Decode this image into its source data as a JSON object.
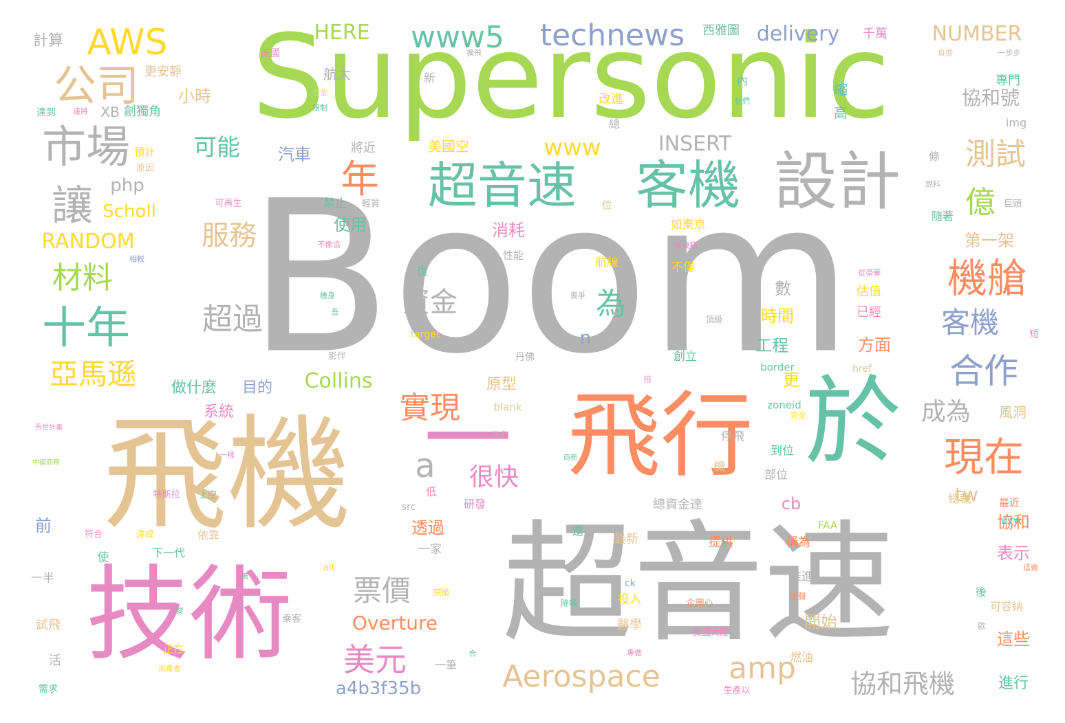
{
  "palette": {
    "grey": "#b3b3b3",
    "green": "#a6d854",
    "tan": "#e5c494",
    "orange": "#fc8d62",
    "teal": "#66c2a5",
    "pink": "#e78ac3",
    "blue": "#8da0cb",
    "yellow": "#ffd92f"
  },
  "words": [
    {
      "text": "Boom",
      "color": "grey"
    },
    {
      "text": "Supersonic",
      "color": "green"
    },
    {
      "text": "超音速",
      "color": "grey"
    },
    {
      "text": "飛機",
      "color": "tan"
    },
    {
      "text": "技術",
      "color": "pink"
    },
    {
      "text": "飛行",
      "color": "orange"
    },
    {
      "text": "於",
      "color": "teal"
    },
    {
      "text": "一",
      "color": "pink"
    },
    {
      "text": "設計",
      "color": "grey"
    },
    {
      "text": "客機",
      "color": "teal"
    },
    {
      "text": "超音速",
      "color": "teal"
    },
    {
      "text": "市場",
      "color": "grey"
    },
    {
      "text": "公司",
      "color": "tan"
    },
    {
      "text": "AWS",
      "color": "yellow"
    },
    {
      "text": "technews",
      "color": "blue"
    },
    {
      "text": "www5",
      "color": "teal"
    },
    {
      "text": "十年",
      "color": "teal"
    },
    {
      "text": "讓",
      "color": "grey"
    },
    {
      "text": "年",
      "color": "orange"
    },
    {
      "text": "機艙",
      "color": "orange"
    },
    {
      "text": "現在",
      "color": "orange"
    },
    {
      "text": "亞馬遜",
      "color": "yellow"
    },
    {
      "text": "材料",
      "color": "green"
    },
    {
      "text": "測試",
      "color": "tan"
    },
    {
      "text": "億",
      "color": "green"
    },
    {
      "text": "服務",
      "color": "tan"
    },
    {
      "text": "為",
      "color": "teal"
    },
    {
      "text": "超過",
      "color": "grey"
    },
    {
      "text": "資金",
      "color": "grey"
    },
    {
      "text": "實現",
      "color": "orange"
    },
    {
      "text": "合作",
      "color": "blue"
    },
    {
      "text": "客機",
      "color": "blue"
    },
    {
      "text": "美元",
      "color": "pink"
    },
    {
      "text": "票價",
      "color": "grey"
    },
    {
      "text": "Aerospace",
      "color": "tan"
    },
    {
      "text": "amp",
      "color": "tan"
    },
    {
      "text": "協和飛機",
      "color": "grey"
    },
    {
      "text": "a",
      "color": "grey"
    },
    {
      "text": "www",
      "color": "yellow"
    },
    {
      "text": "可能",
      "color": "teal"
    },
    {
      "text": "成為",
      "color": "grey"
    },
    {
      "text": "很快",
      "color": "pink"
    },
    {
      "text": "HERE",
      "color": "green"
    },
    {
      "text": "delivery",
      "color": "blue"
    },
    {
      "text": "NUMBER",
      "color": "tan"
    },
    {
      "text": "INSERT",
      "color": "grey"
    },
    {
      "text": "RANDOM",
      "color": "yellow"
    },
    {
      "text": "Collins",
      "color": "green"
    },
    {
      "text": "Overture",
      "color": "orange"
    },
    {
      "text": "tw",
      "color": "tan"
    },
    {
      "text": "a4b3f35b",
      "color": "blue"
    },
    {
      "text": "協和號",
      "color": "grey"
    },
    {
      "text": "第一架",
      "color": "tan"
    },
    {
      "text": "小時",
      "color": "tan"
    },
    {
      "text": "汽車",
      "color": "blue"
    },
    {
      "text": "php",
      "color": "grey"
    },
    {
      "text": "Scholl",
      "color": "yellow"
    },
    {
      "text": "使用",
      "color": "teal"
    },
    {
      "text": "消耗",
      "color": "pink"
    },
    {
      "text": "時間",
      "color": "yellow"
    },
    {
      "text": "工程",
      "color": "teal"
    },
    {
      "text": "方面",
      "color": "orange"
    },
    {
      "text": "表示",
      "color": "pink"
    },
    {
      "text": "協和",
      "color": "orange"
    },
    {
      "text": "開始",
      "color": "tan"
    },
    {
      "text": "這些",
      "color": "orange"
    },
    {
      "text": "進行",
      "color": "teal"
    },
    {
      "text": "透過",
      "color": "orange"
    },
    {
      "text": "系統",
      "color": "pink"
    },
    {
      "text": "做什麼",
      "color": "teal"
    },
    {
      "text": "目的",
      "color": "blue"
    },
    {
      "text": "前",
      "color": "blue"
    },
    {
      "text": "cb",
      "color": "pink"
    },
    {
      "text": "n",
      "color": "blue"
    },
    {
      "text": "原型",
      "color": "tan"
    },
    {
      "text": "數",
      "color": "grey"
    },
    {
      "text": "更",
      "color": "yellow"
    },
    {
      "text": "計算",
      "color": "grey"
    },
    {
      "text": "美國空",
      "color": "yellow"
    },
    {
      "text": "航太",
      "color": "grey"
    },
    {
      "text": "西雅圖",
      "color": "teal"
    },
    {
      "text": "千萬",
      "color": "pink"
    },
    {
      "text": "專門",
      "color": "teal"
    },
    {
      "text": "更安靜",
      "color": "tan"
    },
    {
      "text": "XB",
      "color": "grey"
    },
    {
      "text": "創獨角",
      "color": "teal"
    },
    {
      "text": "將近",
      "color": "grey"
    },
    {
      "text": "禁止",
      "color": "teal"
    },
    {
      "text": "改進",
      "color": "yellow"
    },
    {
      "text": "縮",
      "color": "teal"
    },
    {
      "text": "高",
      "color": "teal"
    },
    {
      "text": "img",
      "color": "grey"
    },
    {
      "text": "隨著",
      "color": "teal"
    },
    {
      "text": "估值",
      "color": "yellow"
    },
    {
      "text": "已經",
      "color": "pink"
    },
    {
      "text": "航線",
      "color": "yellow"
    },
    {
      "text": "不僅",
      "color": "yellow"
    },
    {
      "text": "創立",
      "color": "teal"
    },
    {
      "text": "如東京",
      "color": "yellow"
    },
    {
      "text": "風洞",
      "color": "tan"
    },
    {
      "text": "最近",
      "color": "orange"
    },
    {
      "text": "總裁",
      "color": "tan"
    },
    {
      "text": "部位",
      "color": "grey"
    },
    {
      "text": "到位",
      "color": "teal"
    },
    {
      "text": "停飛",
      "color": "grey"
    },
    {
      "text": "總資金達",
      "color": "grey"
    },
    {
      "text": "最新",
      "color": "tan"
    },
    {
      "text": "提供",
      "color": "orange"
    },
    {
      "text": "稱為",
      "color": "orange"
    },
    {
      "text": "推進",
      "color": "grey"
    },
    {
      "text": "醫學",
      "color": "tan"
    },
    {
      "text": "投入",
      "color": "yellow"
    },
    {
      "text": "燃油",
      "color": "tan"
    },
    {
      "text": "可容納",
      "color": "tan"
    },
    {
      "text": "試飛",
      "color": "tan"
    },
    {
      "text": "一半",
      "color": "grey"
    },
    {
      "text": "使",
      "color": "teal"
    },
    {
      "text": "下一代",
      "color": "teal"
    },
    {
      "text": "依靠",
      "color": "tan"
    },
    {
      "text": "正在",
      "color": "yellow"
    },
    {
      "text": "活",
      "color": "grey"
    },
    {
      "text": "一筆",
      "color": "grey"
    },
    {
      "text": "一家",
      "color": "grey"
    },
    {
      "text": "研發",
      "color": "pink"
    },
    {
      "text": "低",
      "color": "pink"
    },
    {
      "text": "新",
      "color": "grey"
    },
    {
      "text": "內",
      "color": "teal"
    },
    {
      "text": "總",
      "color": "grey"
    },
    {
      "text": "條",
      "color": "grey"
    },
    {
      "text": "FAA",
      "color": "green"
    },
    {
      "text": "avw",
      "color": "teal"
    },
    {
      "text": "zoneid",
      "color": "teal"
    },
    {
      "text": "border",
      "color": "teal"
    },
    {
      "text": "href",
      "color": "tan"
    },
    {
      "text": "blank",
      "color": "tan"
    },
    {
      "text": "src",
      "color": "grey"
    },
    {
      "text": "alt",
      "color": "yellow"
    },
    {
      "text": "ck",
      "color": "blue"
    },
    {
      "text": "target",
      "color": "yellow"
    },
    {
      "text": "短",
      "color": "pink"
    },
    {
      "text": "後",
      "color": "teal"
    },
    {
      "text": "還",
      "color": "teal"
    },
    {
      "text": "機",
      "color": "tan"
    },
    {
      "text": "位",
      "color": "tan"
    },
    {
      "text": "復",
      "color": "teal"
    },
    {
      "text": "超洋",
      "color": "grey"
    },
    {
      "text": "性能",
      "color": "grey"
    },
    {
      "text": "預計",
      "color": "yellow"
    },
    {
      "text": "原因",
      "color": "tan"
    },
    {
      "text": "相較",
      "color": "blue"
    },
    {
      "text": "特斯拉",
      "color": "pink"
    },
    {
      "text": "上空",
      "color": "teal"
    },
    {
      "text": "符合",
      "color": "pink"
    },
    {
      "text": "達成",
      "color": "yellow"
    },
    {
      "text": "需求",
      "color": "teal"
    },
    {
      "text": "巨頭",
      "color": "grey"
    },
    {
      "text": "輕質",
      "color": "grey"
    },
    {
      "text": "可再生",
      "color": "pink"
    },
    {
      "text": "美國大陸",
      "color": "pink"
    },
    {
      "text": "企圖心",
      "color": "orange"
    },
    {
      "text": "生產以",
      "color": "pink"
    },
    {
      "text": "乘客",
      "color": "grey"
    },
    {
      "text": "突破",
      "color": "yellow"
    },
    {
      "text": "降噪",
      "color": "teal"
    },
    {
      "text": "頂級",
      "color": "grey"
    },
    {
      "text": "完全",
      "color": "yellow"
    },
    {
      "text": "丹佛",
      "color": "grey"
    },
    {
      "text": "影伴",
      "color": "grey"
    },
    {
      "text": "不像協",
      "color": "pink"
    },
    {
      "text": "機身",
      "color": "teal"
    },
    {
      "text": "吾",
      "color": "teal"
    },
    {
      "text": "要爭",
      "color": "grey"
    },
    {
      "text": "從豪華",
      "color": "pink"
    },
    {
      "text": "美國",
      "color": "pink"
    },
    {
      "text": "擴飛",
      "color": "grey"
    },
    {
      "text": "一步步",
      "color": "grey"
    },
    {
      "text": "他們",
      "color": "teal"
    },
    {
      "text": "合金",
      "color": "yellow"
    },
    {
      "text": "限制",
      "color": "teal"
    },
    {
      "text": "達到",
      "color": "teal"
    },
    {
      "text": "遠將",
      "color": "pink"
    },
    {
      "text": "燃料",
      "color": "grey"
    },
    {
      "text": "破機種",
      "color": "pink"
    },
    {
      "text": "招",
      "color": "pink"
    },
    {
      "text": "一樣",
      "color": "pink"
    },
    {
      "text": "進步",
      "color": "grey"
    },
    {
      "text": "中國商務",
      "color": "green"
    },
    {
      "text": "合",
      "color": "teal"
    },
    {
      "text": "被",
      "color": "teal"
    },
    {
      "text": "黎",
      "color": "teal"
    },
    {
      "text": "專做",
      "color": "pink"
    },
    {
      "text": "消費者",
      "color": "yellow"
    },
    {
      "text": "爆聲",
      "color": "orange"
    },
    {
      "text": "歐",
      "color": "grey"
    },
    {
      "text": "這幾",
      "color": "orange"
    },
    {
      "text": "負擔",
      "color": "tan"
    },
    {
      "text": "商務",
      "color": "teal"
    },
    {
      "text": "吾世計畫",
      "color": "pink"
    }
  ]
}
